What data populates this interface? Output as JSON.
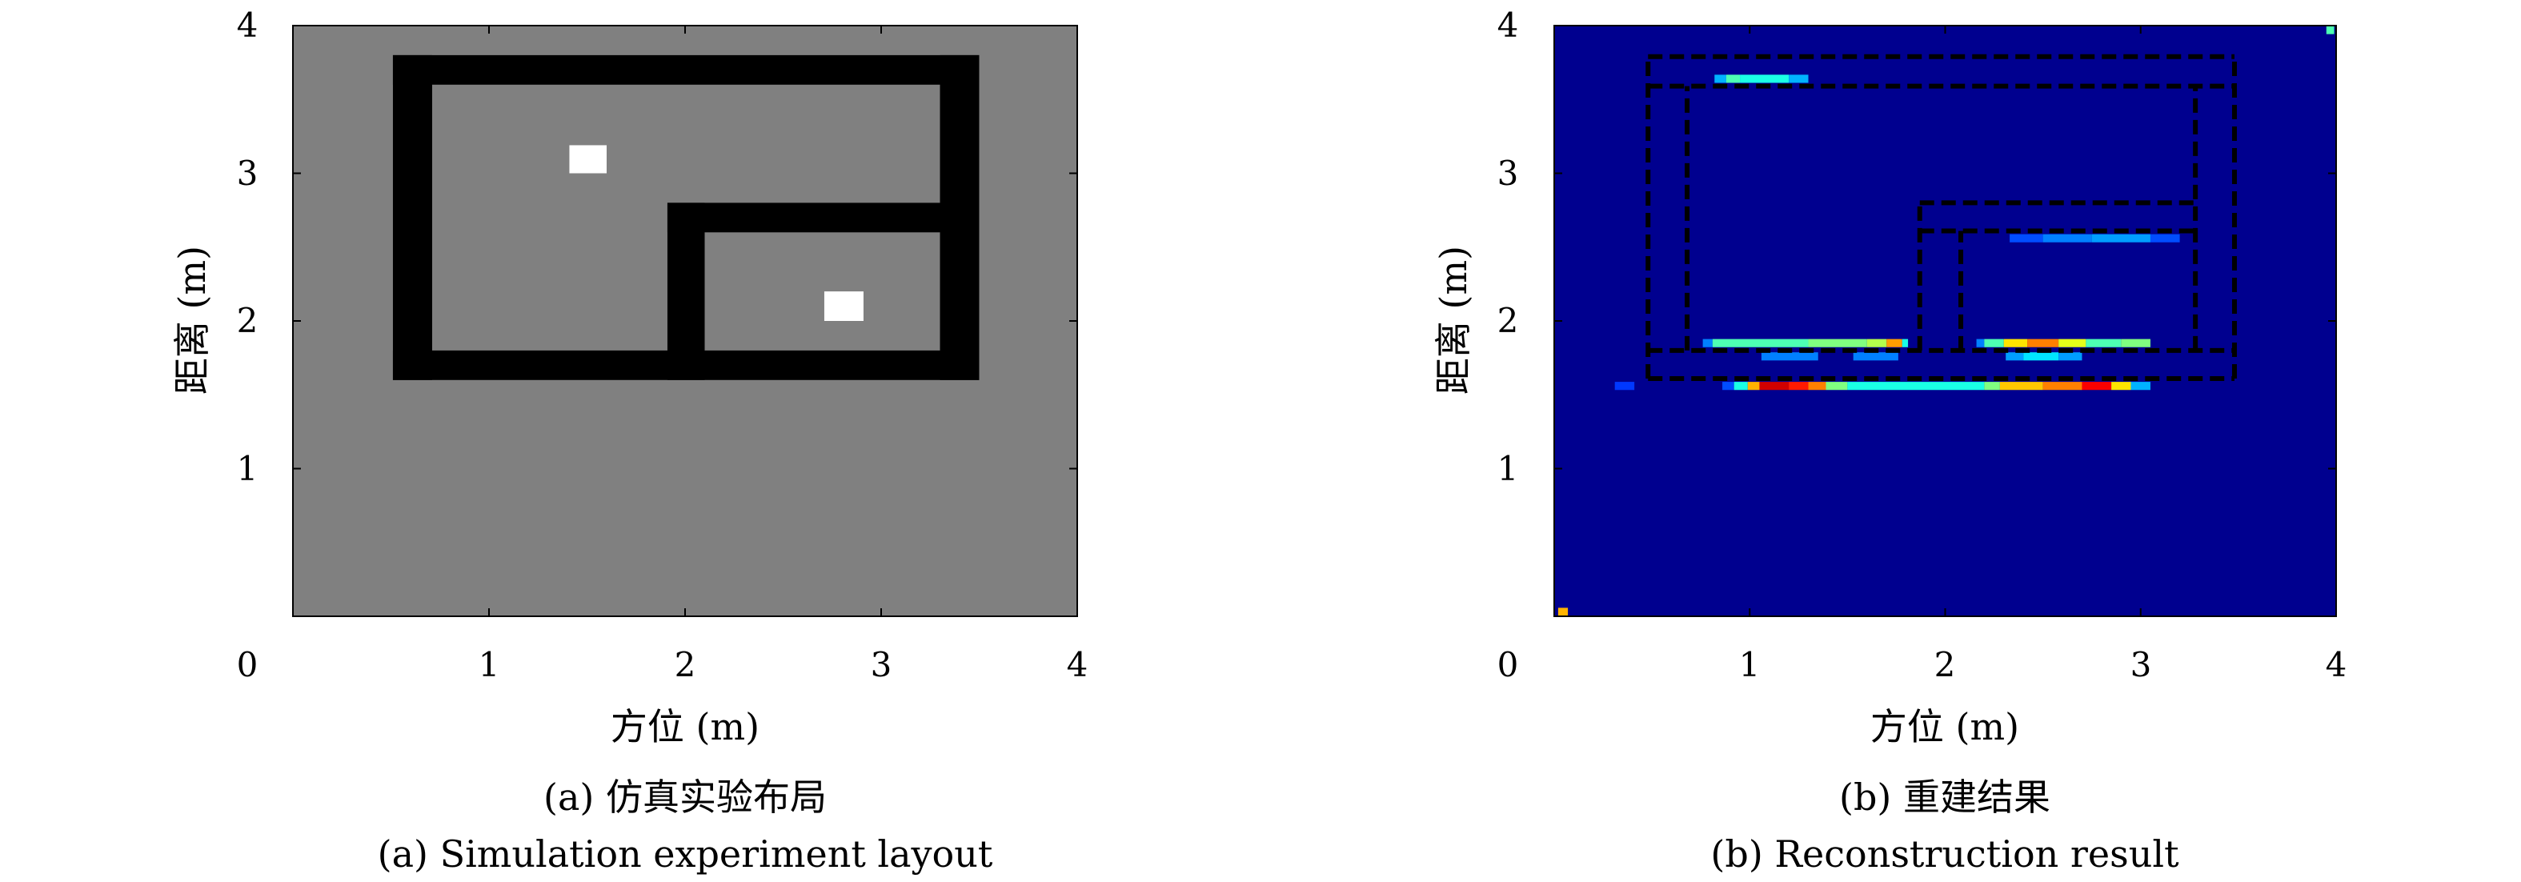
{
  "chart_data": [
    {
      "type": "heatmap",
      "panel": "a",
      "xlabel": "方位 (m)",
      "ylabel": "距离 (m)",
      "xlim": [
        0,
        4
      ],
      "ylim": [
        0,
        4
      ],
      "xticks": [
        "0",
        "1",
        "2",
        "3",
        "4"
      ],
      "yticks": [
        "1",
        "2",
        "3",
        "4"
      ],
      "caption_cn": "(a) 仿真实验布局",
      "caption_en": "(a) Simulation experiment layout",
      "colors": {
        "background": "#808080",
        "wall": "#000000",
        "target": "#ffffff"
      },
      "walls": [
        {
          "x": [
            0.51,
            3.5
          ],
          "y": [
            1.6,
            1.8
          ]
        },
        {
          "x": [
            0.51,
            3.5
          ],
          "y": [
            3.6,
            3.8
          ]
        },
        {
          "x": [
            0.51,
            0.71
          ],
          "y": [
            1.6,
            3.8
          ]
        },
        {
          "x": [
            3.3,
            3.5
          ],
          "y": [
            1.6,
            3.8
          ]
        },
        {
          "x": [
            1.91,
            2.1
          ],
          "y": [
            1.6,
            2.8
          ]
        },
        {
          "x": [
            1.91,
            3.5
          ],
          "y": [
            2.6,
            2.8
          ]
        }
      ],
      "targets": [
        {
          "x": [
            1.41,
            1.6
          ],
          "y": [
            3.0,
            3.19
          ]
        },
        {
          "x": [
            2.71,
            2.91
          ],
          "y": [
            2.0,
            2.2
          ]
        }
      ]
    },
    {
      "type": "heatmap",
      "panel": "b",
      "xlabel": "方位 (m)",
      "ylabel": "距离 (m)",
      "xlim": [
        0,
        4
      ],
      "ylim": [
        0,
        4
      ],
      "xticks": [
        "0",
        "1",
        "2",
        "3",
        "4"
      ],
      "yticks": [
        "1",
        "2",
        "3",
        "4"
      ],
      "caption_cn": "(b) 重建结果",
      "caption_en": "(b) Reconstruction result",
      "colormap": "jet",
      "colors": {
        "background": "#00008f",
        "outline": "#000000"
      },
      "cell_height": 0.055,
      "rows": [
        {
          "y": 3.64,
          "cells": [
            [
              0.82,
              0.88,
              0.3
            ],
            [
              0.88,
              0.95,
              0.45
            ],
            [
              0.95,
              1.2,
              0.4
            ],
            [
              1.2,
              1.3,
              0.3
            ]
          ]
        },
        {
          "y": 2.56,
          "cells": [
            [
              2.33,
              2.5,
              0.2
            ],
            [
              2.5,
              2.75,
              0.25
            ],
            [
              2.75,
              3.05,
              0.28
            ],
            [
              3.05,
              3.2,
              0.2
            ]
          ]
        },
        {
          "y": 1.85,
          "cells": [
            [
              0.76,
              0.81,
              0.25
            ],
            [
              0.81,
              1.3,
              0.45
            ],
            [
              1.3,
              1.6,
              0.5
            ],
            [
              1.6,
              1.7,
              0.55
            ],
            [
              1.7,
              1.78,
              0.72
            ],
            [
              1.78,
              1.81,
              0.4
            ],
            [
              2.16,
              2.2,
              0.25
            ],
            [
              2.2,
              2.3,
              0.45
            ],
            [
              2.3,
              2.42,
              0.65
            ],
            [
              2.42,
              2.58,
              0.75
            ],
            [
              2.58,
              2.72,
              0.6
            ],
            [
              2.72,
              2.9,
              0.45
            ],
            [
              2.9,
              3.05,
              0.5
            ]
          ]
        },
        {
          "y": 1.76,
          "cells": [
            [
              1.06,
              1.35,
              0.25
            ],
            [
              1.53,
              1.76,
              0.25
            ],
            [
              2.31,
              2.4,
              0.28
            ],
            [
              2.4,
              2.58,
              0.35
            ],
            [
              2.58,
              2.7,
              0.28
            ]
          ]
        },
        {
          "y": 1.56,
          "cells": [
            [
              0.31,
              0.41,
              0.18
            ],
            [
              0.86,
              0.92,
              0.2
            ],
            [
              0.92,
              0.99,
              0.4
            ],
            [
              0.99,
              1.05,
              0.7
            ],
            [
              1.05,
              1.2,
              0.92
            ],
            [
              1.2,
              1.3,
              0.85
            ],
            [
              1.3,
              1.39,
              0.75
            ],
            [
              1.39,
              1.5,
              0.5
            ],
            [
              1.5,
              2.2,
              0.4
            ],
            [
              2.2,
              2.28,
              0.5
            ],
            [
              2.28,
              2.5,
              0.68
            ],
            [
              2.5,
              2.7,
              0.75
            ],
            [
              2.7,
              2.85,
              0.88
            ],
            [
              2.85,
              2.95,
              0.65
            ],
            [
              2.95,
              3.05,
              0.3
            ]
          ]
        },
        {
          "y": 3.97,
          "cells": [
            [
              3.95,
              3.99,
              0.45
            ]
          ]
        },
        {
          "y": 0.03,
          "cells": [
            [
              0.02,
              0.07,
              0.7
            ]
          ]
        }
      ],
      "dashed_outline": [
        [
          [
            0.48,
            1.61
          ],
          [
            3.48,
            1.61
          ]
        ],
        [
          [
            0.48,
            3.79
          ],
          [
            3.48,
            3.79
          ]
        ],
        [
          [
            0.48,
            1.61
          ],
          [
            0.48,
            3.79
          ]
        ],
        [
          [
            3.48,
            1.61
          ],
          [
            3.48,
            3.79
          ]
        ],
        [
          [
            0.48,
            3.59
          ],
          [
            3.48,
            3.59
          ]
        ],
        [
          [
            0.48,
            1.8
          ],
          [
            3.48,
            1.8
          ]
        ],
        [
          [
            0.68,
            1.8
          ],
          [
            0.68,
            3.59
          ]
        ],
        [
          [
            3.28,
            1.8
          ],
          [
            3.28,
            3.59
          ]
        ],
        [
          [
            1.87,
            1.8
          ],
          [
            1.87,
            2.8
          ]
        ],
        [
          [
            1.87,
            2.8
          ],
          [
            3.28,
            2.8
          ]
        ],
        [
          [
            1.87,
            2.61
          ],
          [
            3.28,
            2.61
          ]
        ],
        [
          [
            2.08,
            1.8
          ],
          [
            2.08,
            2.61
          ]
        ]
      ]
    }
  ]
}
